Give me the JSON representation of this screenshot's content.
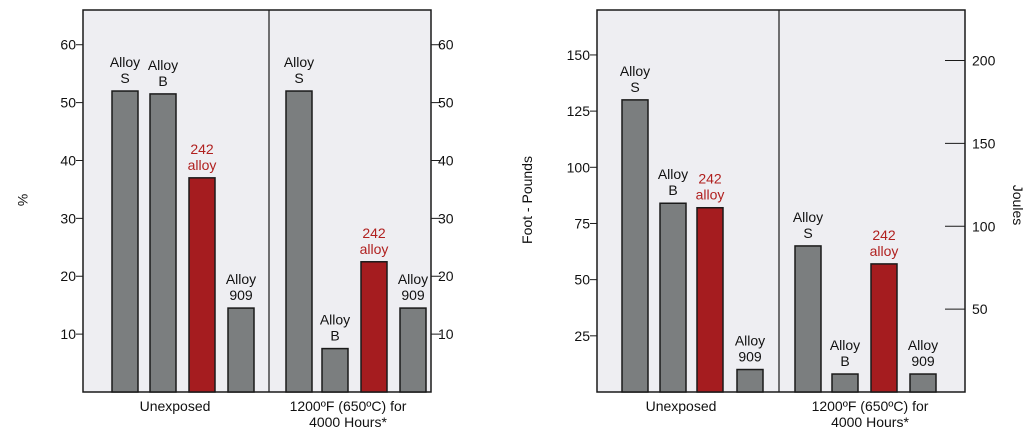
{
  "colors": {
    "panel_bg": "#eeeef2",
    "axis": "#1a1a1a",
    "bar_alloy": "#7b7e7f",
    "bar_242": "#a51c1f",
    "text": "#111111",
    "text_242": "#b0201f"
  },
  "chart_data": [
    {
      "type": "bar",
      "ylabel": "%",
      "ylim": [
        0,
        66
      ],
      "yticks": [
        10,
        20,
        30,
        40,
        50,
        60
      ],
      "yticks_right": [
        10,
        20,
        30,
        40,
        50,
        60
      ],
      "groups": [
        {
          "label_lines": [
            "Unexposed"
          ],
          "bars": [
            {
              "label": [
                "Alloy",
                "S"
              ],
              "value": 52,
              "highlight": false
            },
            {
              "label": [
                "Alloy",
                "B"
              ],
              "value": 51.5,
              "highlight": false
            },
            {
              "label": [
                "242",
                "alloy"
              ],
              "value": 37,
              "highlight": true
            },
            {
              "label": [
                "Alloy",
                "909"
              ],
              "value": 14.5,
              "highlight": false
            }
          ]
        },
        {
          "label_lines": [
            "1200ºF (650ºC) for",
            "4000 Hours*"
          ],
          "bars": [
            {
              "label": [
                "Alloy",
                "S"
              ],
              "value": 52,
              "highlight": false
            },
            {
              "label": [
                "Alloy",
                "B"
              ],
              "value": 7.5,
              "highlight": false
            },
            {
              "label": [
                "242",
                "alloy"
              ],
              "value": 22.5,
              "highlight": true
            },
            {
              "label": [
                "Alloy",
                "909"
              ],
              "value": 14.5,
              "highlight": false
            }
          ]
        }
      ]
    },
    {
      "type": "bar",
      "ylabel": "Foot - Pounds",
      "ylabel_right": "Joules",
      "ylim": [
        0,
        170
      ],
      "yticks": [
        25,
        50,
        75,
        100,
        125,
        150
      ],
      "yticks_right": [
        50,
        100,
        150,
        200
      ],
      "right_scale_factor": 1.3558,
      "groups": [
        {
          "label_lines": [
            "Unexposed"
          ],
          "bars": [
            {
              "label": [
                "Alloy",
                "S"
              ],
              "value": 130,
              "highlight": false
            },
            {
              "label": [
                "Alloy",
                "B"
              ],
              "value": 84,
              "highlight": false
            },
            {
              "label": [
                "242",
                "alloy"
              ],
              "value": 82,
              "highlight": true
            },
            {
              "label": [
                "Alloy",
                "909"
              ],
              "value": 10,
              "highlight": false
            }
          ]
        },
        {
          "label_lines": [
            "1200ºF (650ºC) for",
            "4000 Hours*"
          ],
          "bars": [
            {
              "label": [
                "Alloy",
                "S"
              ],
              "value": 65,
              "highlight": false
            },
            {
              "label": [
                "Alloy",
                "B"
              ],
              "value": 8,
              "highlight": false
            },
            {
              "label": [
                "242",
                "alloy"
              ],
              "value": 57,
              "highlight": true
            },
            {
              "label": [
                "Alloy",
                "909"
              ],
              "value": 8,
              "highlight": false
            }
          ]
        }
      ]
    }
  ]
}
